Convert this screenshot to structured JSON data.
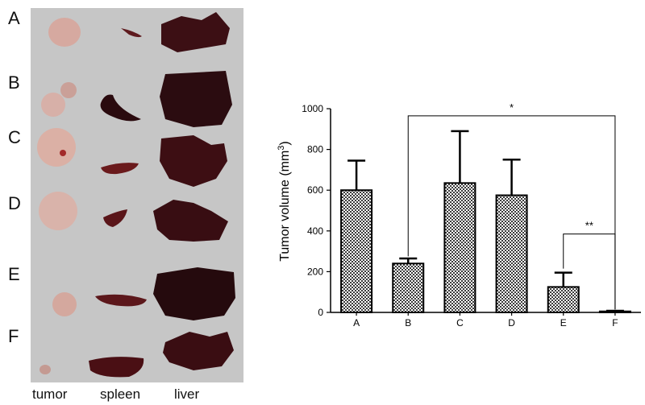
{
  "photo_panel": {
    "row_labels": [
      "A",
      "B",
      "C",
      "D",
      "E",
      "F"
    ],
    "column_labels": [
      "tumor",
      "spleen",
      "liver"
    ]
  },
  "chart_data": {
    "type": "bar",
    "categories": [
      "A",
      "B",
      "C",
      "D",
      "E",
      "F"
    ],
    "values": [
      600,
      240,
      635,
      575,
      125,
      5
    ],
    "error_upper": [
      745,
      265,
      890,
      750,
      195,
      8
    ],
    "ylabel": "Tumor volume (mm",
    "ylabel_superscript": "3",
    "ylabel_suffix": ")",
    "ylim": [
      0,
      1000
    ],
    "yticks": [
      "0",
      "200",
      "400",
      "600",
      "800",
      "1000"
    ],
    "significance": [
      {
        "from": "B",
        "to": "F",
        "label": "*"
      },
      {
        "from": "E",
        "to": "F",
        "label": "**"
      }
    ],
    "bar_fill": "checkered",
    "grid": false,
    "legend": "none"
  }
}
